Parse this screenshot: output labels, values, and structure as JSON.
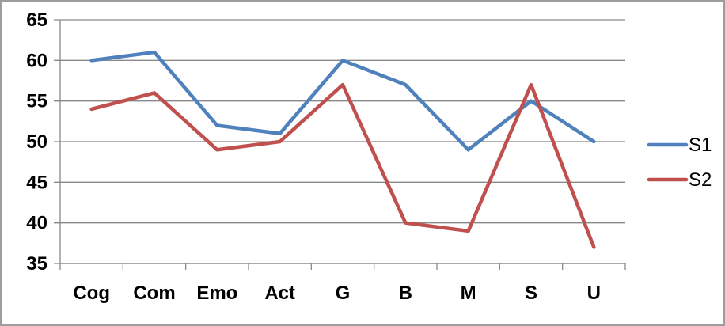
{
  "chart_data": {
    "type": "line",
    "title": "",
    "xlabel": "",
    "ylabel": "",
    "categories": [
      "Cog",
      "Com",
      "Emo",
      "Act",
      "G",
      "B",
      "M",
      "S",
      "U"
    ],
    "series": [
      {
        "name": "S1",
        "color": "#4F81BD",
        "values": [
          60,
          61,
          52,
          51,
          60,
          57,
          49,
          55,
          50
        ]
      },
      {
        "name": "S2",
        "color": "#C0504D",
        "values": [
          54,
          56,
          49,
          50,
          57,
          40,
          39,
          57,
          37
        ]
      }
    ],
    "ylim": [
      35,
      65
    ],
    "ytick_step": 5,
    "yticks": [
      65,
      60,
      55,
      50,
      45,
      40,
      35
    ],
    "grid": true,
    "legend_position": "right"
  },
  "colors": {
    "grid_line": "#898989",
    "axis_line": "#898989",
    "tick_text": "#000000",
    "frame_border": "#9d9d9d",
    "background": "#FFFFFF"
  }
}
